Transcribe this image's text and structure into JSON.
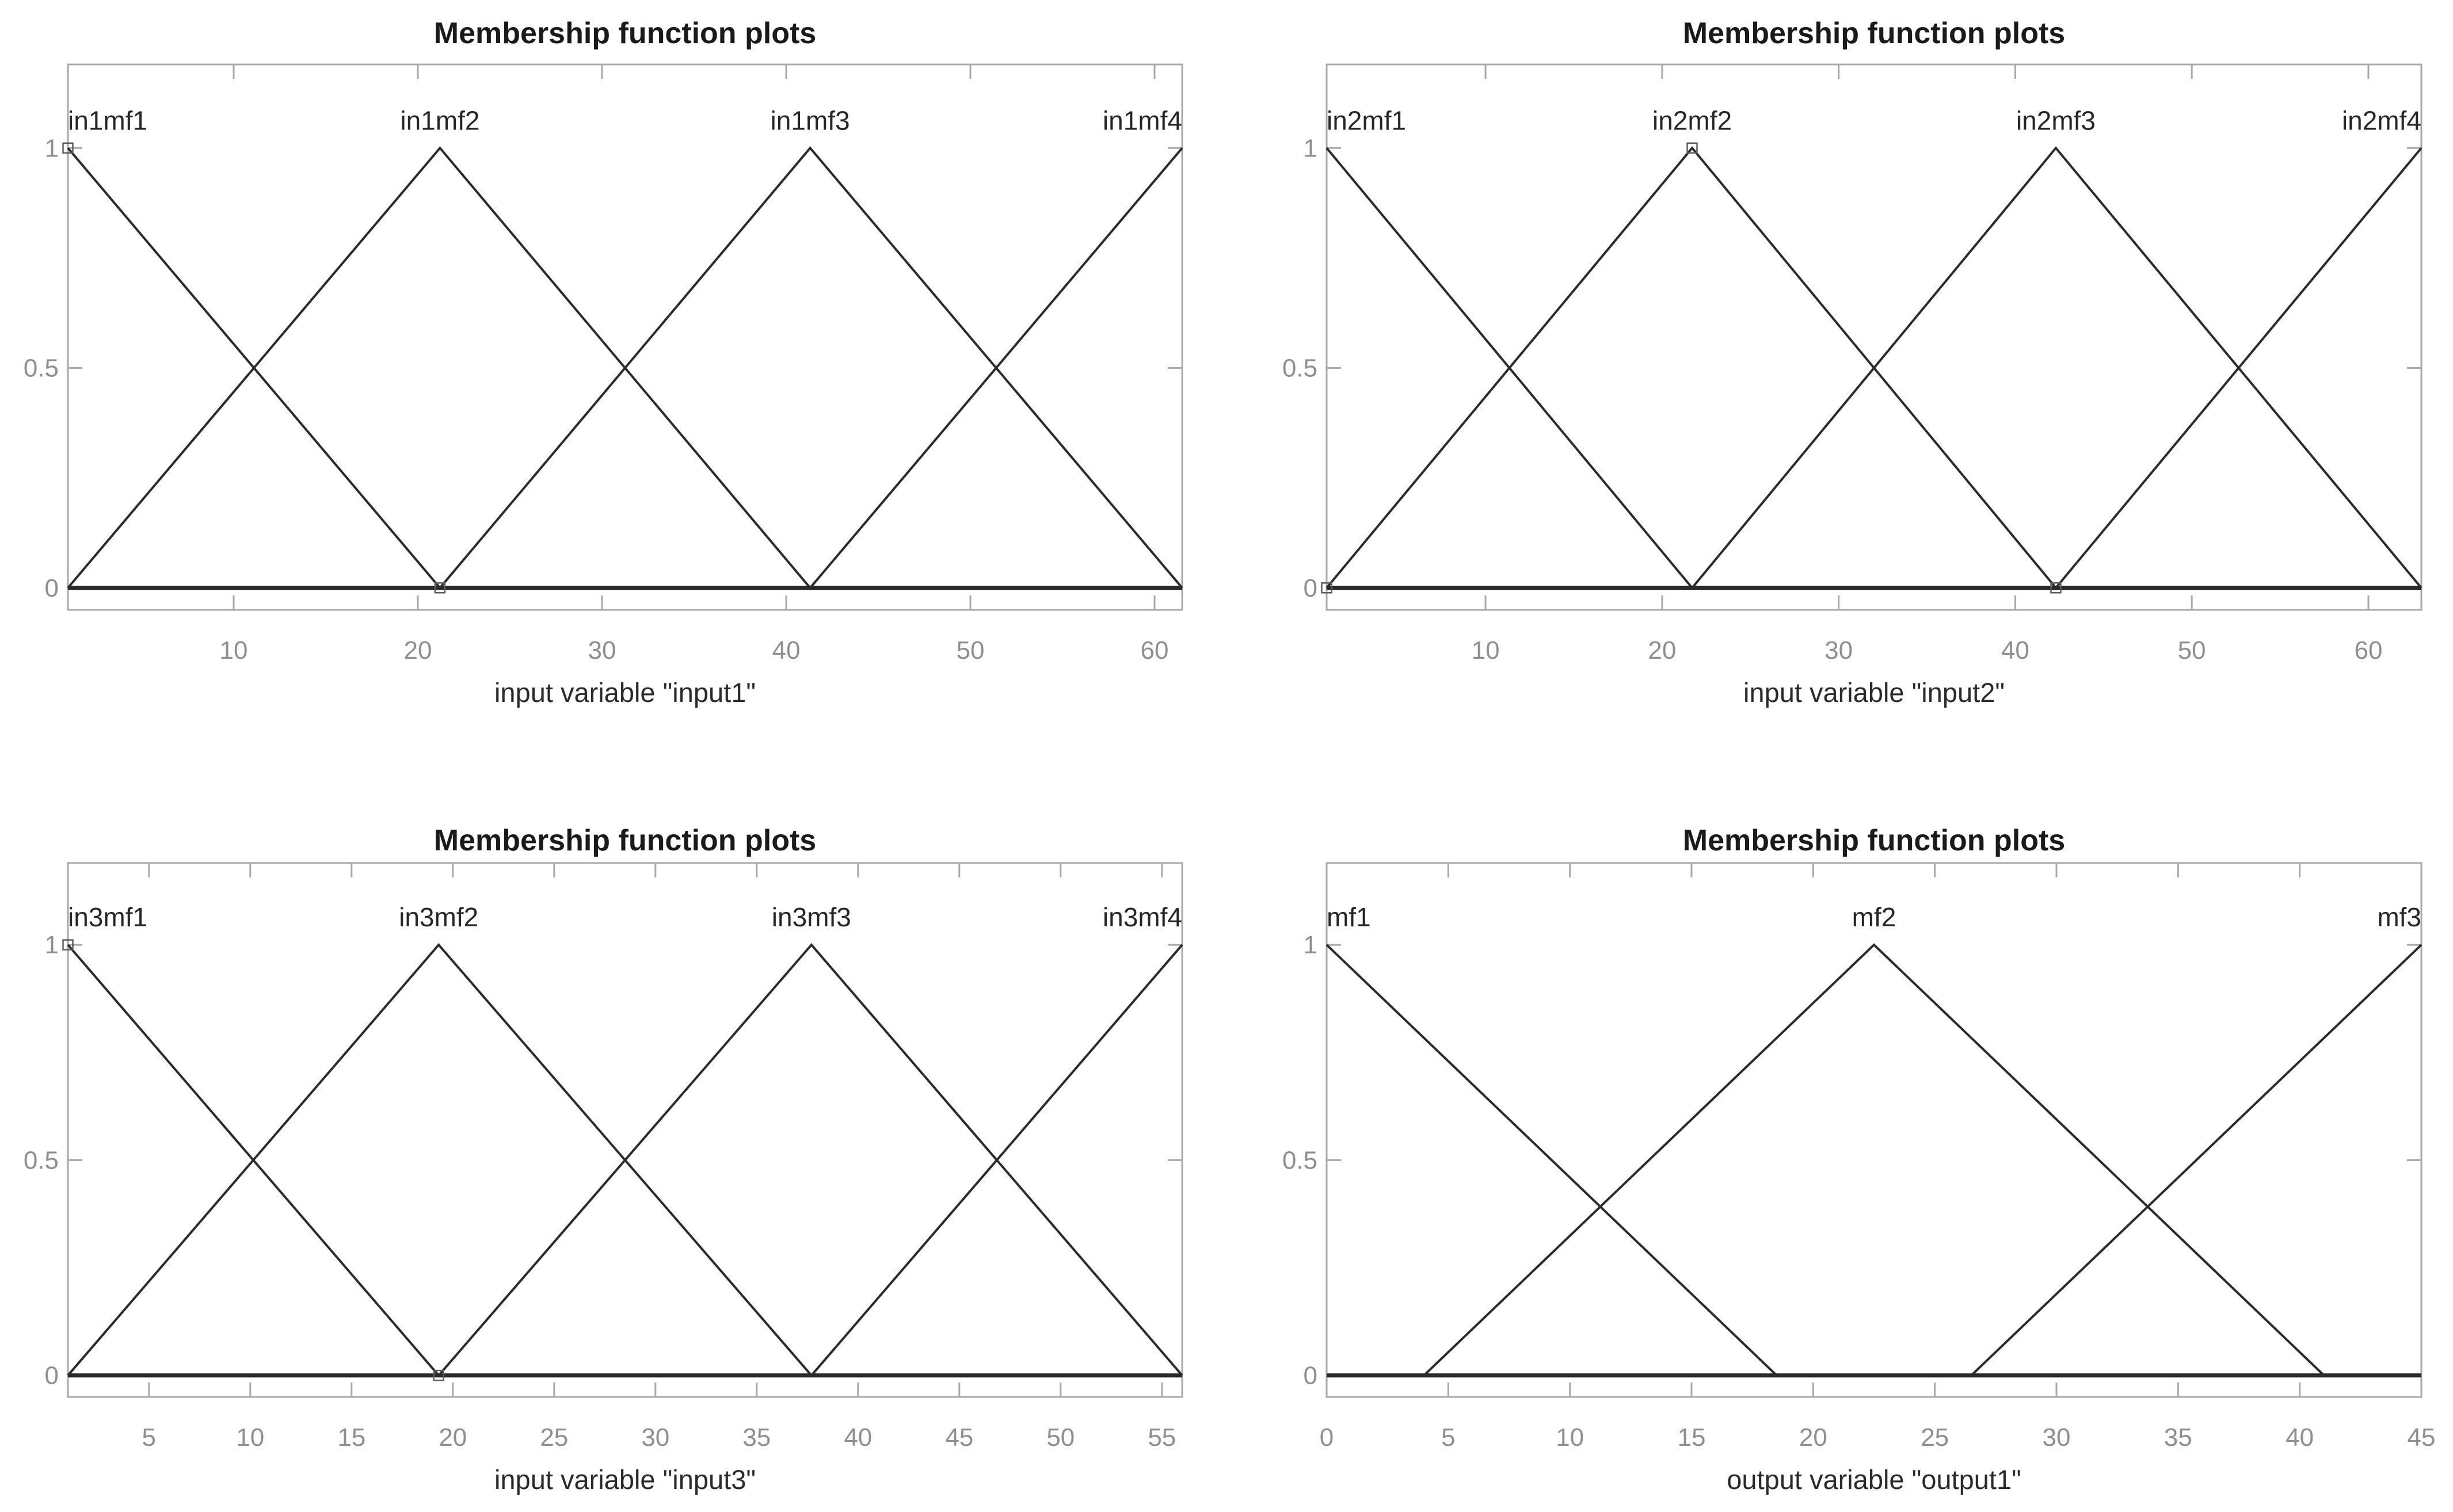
{
  "figure": {
    "background": "#ffffff",
    "colors": {
      "mf_line": "#2b2b2b",
      "baseline": "#1f1f1f",
      "axis_box": "#a9a9a9",
      "tick": "#a9a9a9",
      "tick_label": "#8f8f8f",
      "title": "#1a1a1a",
      "axis_label": "#2a2a2a",
      "mf_label": "#262626",
      "marker": "#5e5e5e"
    }
  },
  "chart_data": [
    {
      "type": "line",
      "title": "Membership function plots",
      "xlabel": "input variable \"input1\"",
      "ylabel": "",
      "var_name": "input1",
      "xlim": [
        1,
        61.5
      ],
      "ylim": [
        -0.05,
        1.19
      ],
      "grid": false,
      "xticks": [
        10,
        20,
        30,
        40,
        50,
        60
      ],
      "yticks": [
        0,
        0.5,
        1
      ],
      "mf_labels": [
        "in1mf1",
        "in1mf2",
        "in1mf3",
        "in1mf4"
      ],
      "series": [
        {
          "name": "in1mf1",
          "points": [
            [
              1,
              1
            ],
            [
              21.2,
              0
            ],
            [
              61.5,
              0
            ]
          ]
        },
        {
          "name": "in1mf2",
          "points": [
            [
              1,
              0
            ],
            [
              21.2,
              1
            ],
            [
              41.3,
              0
            ],
            [
              61.5,
              0
            ]
          ]
        },
        {
          "name": "in1mf3",
          "points": [
            [
              1,
              0
            ],
            [
              21.2,
              0
            ],
            [
              41.3,
              1
            ],
            [
              61.5,
              0
            ]
          ]
        },
        {
          "name": "in1mf4",
          "points": [
            [
              1,
              0
            ],
            [
              41.3,
              0
            ],
            [
              61.5,
              1
            ]
          ]
        }
      ],
      "markers": [
        [
          1,
          1
        ],
        [
          21.2,
          0
        ]
      ]
    },
    {
      "type": "line",
      "title": "Membership function plots",
      "xlabel": "input variable \"input2\"",
      "ylabel": "",
      "var_name": "input2",
      "xlim": [
        1,
        63
      ],
      "ylim": [
        -0.05,
        1.19
      ],
      "grid": false,
      "xticks": [
        10,
        20,
        30,
        40,
        50,
        60
      ],
      "yticks": [
        0,
        0.5,
        1
      ],
      "mf_labels": [
        "in2mf1",
        "in2mf2",
        "in2mf3",
        "in2mf4"
      ],
      "series": [
        {
          "name": "in2mf1",
          "points": [
            [
              1,
              1
            ],
            [
              21.7,
              0
            ],
            [
              63,
              0
            ]
          ]
        },
        {
          "name": "in2mf2",
          "points": [
            [
              1,
              0
            ],
            [
              21.7,
              1
            ],
            [
              42.3,
              0
            ],
            [
              63,
              0
            ]
          ]
        },
        {
          "name": "in2mf3",
          "points": [
            [
              1,
              0
            ],
            [
              21.7,
              0
            ],
            [
              42.3,
              1
            ],
            [
              63,
              0
            ]
          ]
        },
        {
          "name": "in2mf4",
          "points": [
            [
              1,
              0
            ],
            [
              42.3,
              0
            ],
            [
              63,
              1
            ]
          ]
        }
      ],
      "markers": [
        [
          1,
          0
        ],
        [
          21.7,
          1
        ],
        [
          42.3,
          0
        ]
      ]
    },
    {
      "type": "line",
      "title": "Membership function plots",
      "xlabel": "input variable \"input3\"",
      "ylabel": "",
      "var_name": "input3",
      "xlim": [
        1,
        56
      ],
      "ylim": [
        -0.05,
        1.19
      ],
      "grid": false,
      "xticks": [
        5,
        10,
        15,
        20,
        25,
        30,
        35,
        40,
        45,
        50,
        55
      ],
      "yticks": [
        0,
        0.5,
        1
      ],
      "mf_labels": [
        "in3mf1",
        "in3mf2",
        "in3mf3",
        "in3mf4"
      ],
      "series": [
        {
          "name": "in3mf1",
          "points": [
            [
              1,
              1
            ],
            [
              19.3,
              0
            ],
            [
              56,
              0
            ]
          ]
        },
        {
          "name": "in3mf2",
          "points": [
            [
              1,
              0
            ],
            [
              19.3,
              1
            ],
            [
              37.7,
              0
            ],
            [
              56,
              0
            ]
          ]
        },
        {
          "name": "in3mf3",
          "points": [
            [
              1,
              0
            ],
            [
              19.3,
              0
            ],
            [
              37.7,
              1
            ],
            [
              56,
              0
            ]
          ]
        },
        {
          "name": "in3mf4",
          "points": [
            [
              1,
              0
            ],
            [
              37.7,
              0
            ],
            [
              56,
              1
            ]
          ]
        }
      ],
      "markers": [
        [
          1,
          1
        ],
        [
          19.3,
          0
        ]
      ]
    },
    {
      "type": "line",
      "title": "Membership function plots",
      "xlabel": "output variable \"output1\"",
      "ylabel": "",
      "var_name": "output1",
      "xlim": [
        0,
        45
      ],
      "ylim": [
        -0.05,
        1.19
      ],
      "grid": false,
      "xticks": [
        0,
        5,
        10,
        15,
        20,
        25,
        30,
        35,
        40,
        45
      ],
      "yticks": [
        0,
        0.5,
        1
      ],
      "mf_labels": [
        "mf1",
        "mf2",
        "mf3"
      ],
      "series": [
        {
          "name": "mf1",
          "points": [
            [
              0,
              1
            ],
            [
              18.5,
              0
            ],
            [
              45,
              0
            ]
          ]
        },
        {
          "name": "mf2",
          "points": [
            [
              0,
              0
            ],
            [
              4,
              0
            ],
            [
              22.5,
              1
            ],
            [
              41,
              0
            ],
            [
              45,
              0
            ]
          ]
        },
        {
          "name": "mf3",
          "points": [
            [
              0,
              0
            ],
            [
              26.5,
              0
            ],
            [
              45,
              1
            ]
          ]
        }
      ],
      "markers": []
    }
  ]
}
